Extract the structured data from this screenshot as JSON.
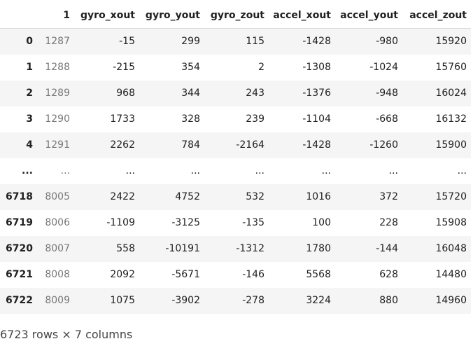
{
  "table": {
    "headers": [
      "",
      "1",
      "gyro_xout",
      "gyro_yout",
      "gyro_zout",
      "accel_xout",
      "accel_yout",
      "accel_zout"
    ],
    "rows": [
      {
        "index": "0",
        "cells": [
          "1287",
          "-15",
          "299",
          "115",
          "-1428",
          "-980",
          "15920"
        ]
      },
      {
        "index": "1",
        "cells": [
          "1288",
          "-215",
          "354",
          "2",
          "-1308",
          "-1024",
          "15760"
        ]
      },
      {
        "index": "2",
        "cells": [
          "1289",
          "968",
          "344",
          "243",
          "-1376",
          "-948",
          "16024"
        ]
      },
      {
        "index": "3",
        "cells": [
          "1290",
          "1733",
          "328",
          "239",
          "-1104",
          "-668",
          "16132"
        ]
      },
      {
        "index": "4",
        "cells": [
          "1291",
          "2262",
          "784",
          "-2164",
          "-1428",
          "-1260",
          "15900"
        ]
      },
      {
        "index": "...",
        "cells": [
          "...",
          "...",
          "...",
          "...",
          "...",
          "...",
          "..."
        ]
      },
      {
        "index": "6718",
        "cells": [
          "8005",
          "2422",
          "4752",
          "532",
          "1016",
          "372",
          "15720"
        ]
      },
      {
        "index": "6719",
        "cells": [
          "8006",
          "-1109",
          "-3125",
          "-135",
          "100",
          "228",
          "15908"
        ]
      },
      {
        "index": "6720",
        "cells": [
          "8007",
          "558",
          "-10191",
          "-1312",
          "1780",
          "-144",
          "16048"
        ]
      },
      {
        "index": "6721",
        "cells": [
          "8008",
          "2092",
          "-5671",
          "-146",
          "5568",
          "628",
          "14480"
        ]
      },
      {
        "index": "6722",
        "cells": [
          "8009",
          "1075",
          "-3902",
          "-278",
          "3224",
          "880",
          "14960"
        ]
      }
    ]
  },
  "shape_text": "6723 rows × 7 columns"
}
